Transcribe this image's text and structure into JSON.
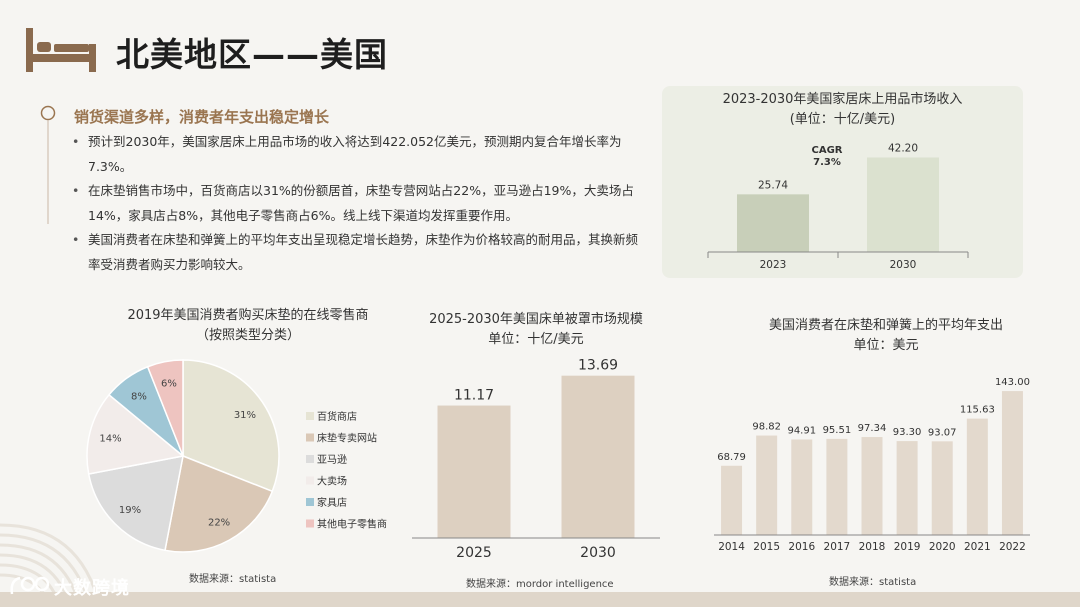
{
  "header": {
    "title": "北美地区——美国",
    "icon": "bed-icon"
  },
  "intro": {
    "heading": "销货渠道多样，消费者年支出稳定增长",
    "bullets": [
      "预计到2030年，美国家居床上用品市场的收入将达到422.052亿美元，预测期内复合年增长率为 7.3%。",
      "在床垫销售市场中，百货商店以31%的份额居首，床垫专营网站占22%，亚马逊占19%，大卖场占14%，家具店占8%，其他电子零售商占6%。线上线下渠道均发挥重要作用。",
      "美国消费者在床垫和弹簧上的平均年支出呈现稳定增长趋势，床垫作为价格较高的耐用品，其换新频率受消费者购买力影响较大。"
    ]
  },
  "chart_data": [
    {
      "id": "revenue",
      "type": "bar",
      "title": "2023-2030年美国家居床上用品市场收入",
      "subtitle": "(单位：十亿/美元)",
      "categories": [
        "2023",
        "2030"
      ],
      "values": [
        25.74,
        42.2
      ],
      "value_labels": [
        "25.74",
        "42.20"
      ],
      "annotation": [
        "CAGR",
        "7.3%"
      ],
      "ylim": [
        0,
        50
      ],
      "grid": false,
      "colors": [
        "#c8cfb9",
        "#dbe1cf"
      ]
    },
    {
      "id": "retailers",
      "type": "pie",
      "title": "2019年美国消费者购买床垫的在线零售商",
      "subtitle": "（按照类型分类）",
      "labels": [
        "百货商店",
        "床垫专卖网站",
        "亚马逊",
        "大卖场",
        "家具店",
        "其他电子零售商"
      ],
      "values": [
        31,
        22,
        19,
        14,
        8,
        6
      ],
      "value_labels": [
        "31%",
        "22%",
        "19%",
        "14%",
        "8%",
        "6%"
      ],
      "colors": [
        "#e6e4d4",
        "#dac8b6",
        "#dcdcdc",
        "#f2ecea",
        "#9fc6d5",
        "#eec4c0"
      ],
      "legend": "right",
      "source": "数据来源：statista"
    },
    {
      "id": "bedding",
      "type": "bar",
      "title": "2025-2030年美国床单被罩市场规模",
      "subtitle": "单位：十亿/美元",
      "categories": [
        "2025",
        "2030"
      ],
      "values": [
        11.17,
        13.69
      ],
      "value_labels": [
        "11.17",
        "13.69"
      ],
      "ylim": [
        0,
        14
      ],
      "grid": false,
      "colors": [
        "#ddd0c1",
        "#ddd0c1"
      ],
      "source": "数据来源：mordor intelligence"
    },
    {
      "id": "spending",
      "type": "bar",
      "title": "美国消费者在床垫和弹簧上的平均年支出",
      "subtitle": "单位：美元",
      "categories": [
        "2014",
        "2015",
        "2016",
        "2017",
        "2018",
        "2019",
        "2020",
        "2021",
        "2022"
      ],
      "values": [
        68.79,
        98.82,
        94.91,
        95.51,
        97.34,
        93.3,
        93.07,
        115.63,
        143.0
      ],
      "value_labels": [
        "68.79",
        "98.82",
        "94.91",
        "95.51",
        "97.34",
        "93.30",
        "93.07",
        "115.63",
        "143.00"
      ],
      "ylim": [
        0,
        155
      ],
      "grid": false,
      "colors": [
        "#e3d9cd"
      ],
      "source": "数据来源：statista"
    }
  ],
  "footer": {
    "logo_text": "大数跨境",
    "logo_icon": "brand-logo-icon"
  },
  "theme": {
    "accent": "#9a7550",
    "icon_brown": "#8a6a4e",
    "page_bg": "#f6f5f2",
    "panel_bg": "#eceee5"
  }
}
